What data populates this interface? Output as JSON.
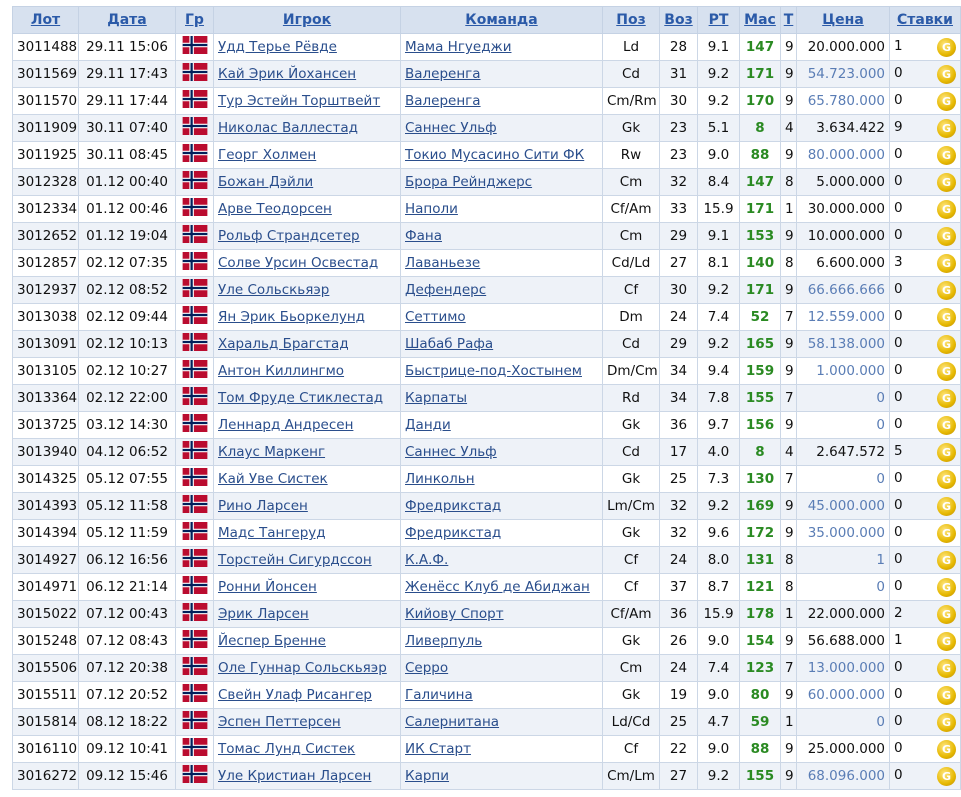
{
  "table": {
    "headers": [
      "Лот",
      "Дата",
      "Гр",
      "Игрок",
      "Команда",
      "Поз",
      "Воз",
      "РТ",
      "Мас",
      "Т",
      "Цена",
      "Ставки"
    ],
    "rows": [
      [
        "3011488",
        "29.11 15:06",
        "Удд Терье Рёвде",
        "Мама Нгуеджи",
        "Ld",
        "28",
        "9.1",
        "147",
        "9",
        "20.000.000",
        "1",
        false
      ],
      [
        "3011569",
        "29.11 17:43",
        "Кай Эрик Йохансен",
        "Валеренга",
        "Cd",
        "31",
        "9.2",
        "171",
        "9",
        "54.723.000",
        "0",
        true
      ],
      [
        "3011570",
        "29.11 17:44",
        "Тур Эстейн Торштвейт",
        "Валеренга",
        "Cm/Rm",
        "30",
        "9.2",
        "170",
        "9",
        "65.780.000",
        "0",
        true
      ],
      [
        "3011909",
        "30.11 07:40",
        "Николас Валлестад",
        "Саннес Ульф",
        "Gk",
        "23",
        "5.1",
        "8",
        "4",
        "3.634.422",
        "9",
        false
      ],
      [
        "3011925",
        "30.11 08:45",
        "Георг Холмен",
        "Токио Мусасино Сити ФК",
        "Rw",
        "23",
        "9.0",
        "88",
        "9",
        "80.000.000",
        "0",
        true
      ],
      [
        "3012328",
        "01.12 00:40",
        "Божан Дэйли",
        "Брора Рейнджерс",
        "Cm",
        "32",
        "8.4",
        "147",
        "8",
        "5.000.000",
        "0",
        false
      ],
      [
        "3012334",
        "01.12 00:46",
        "Арве Теодорсен",
        "Наполи",
        "Cf/Am",
        "33",
        "15.9",
        "171",
        "1",
        "30.000.000",
        "0",
        false
      ],
      [
        "3012652",
        "01.12 19:04",
        "Рольф Страндсетер",
        "Фана",
        "Cm",
        "29",
        "9.1",
        "153",
        "9",
        "10.000.000",
        "0",
        false
      ],
      [
        "3012857",
        "02.12 07:35",
        "Солве Урсин Освестад",
        "Лаваньезе",
        "Cd/Ld",
        "27",
        "8.1",
        "140",
        "8",
        "6.600.000",
        "3",
        false
      ],
      [
        "3012937",
        "02.12 08:52",
        "Уле Сольскьяэр",
        "Дефендерс",
        "Cf",
        "30",
        "9.2",
        "171",
        "9",
        "66.666.666",
        "0",
        true
      ],
      [
        "3013038",
        "02.12 09:44",
        "Ян Эрик Бьоркелунд",
        "Сеттимо",
        "Dm",
        "24",
        "7.4",
        "52",
        "7",
        "12.559.000",
        "0",
        true
      ],
      [
        "3013091",
        "02.12 10:13",
        "Харальд Брагстад",
        "Шабаб Рафа",
        "Cd",
        "29",
        "9.2",
        "165",
        "9",
        "58.138.000",
        "0",
        true
      ],
      [
        "3013105",
        "02.12 10:27",
        "Антон Киллингмо",
        "Быстрице-под-Хостынем",
        "Dm/Cm",
        "34",
        "9.4",
        "159",
        "9",
        "1.000.000",
        "0",
        true
      ],
      [
        "3013364",
        "02.12 22:00",
        "Том Фруде Стиклестад",
        "Карпаты",
        "Rd",
        "34",
        "7.8",
        "155",
        "7",
        "0",
        "0",
        true
      ],
      [
        "3013725",
        "03.12 14:30",
        "Леннард Андресен",
        "Данди",
        "Gk",
        "36",
        "9.7",
        "156",
        "9",
        "0",
        "0",
        true
      ],
      [
        "3013940",
        "04.12 06:52",
        "Клаус Маркенг",
        "Саннес Ульф",
        "Cd",
        "17",
        "4.0",
        "8",
        "4",
        "2.647.572",
        "5",
        false
      ],
      [
        "3014325",
        "05.12 07:55",
        "Кай Уве Систек",
        "Линкольн",
        "Gk",
        "25",
        "7.3",
        "130",
        "7",
        "0",
        "0",
        true
      ],
      [
        "3014393",
        "05.12 11:58",
        "Рино Ларсен",
        "Фредрикстад",
        "Lm/Cm",
        "32",
        "9.2",
        "169",
        "9",
        "45.000.000",
        "0",
        true
      ],
      [
        "3014394",
        "05.12 11:59",
        "Мадс Тангеруд",
        "Фредрикстад",
        "Gk",
        "32",
        "9.6",
        "172",
        "9",
        "35.000.000",
        "0",
        true
      ],
      [
        "3014927",
        "06.12 16:56",
        "Торстейн Сигурдссон",
        "К.А.Ф.",
        "Cf",
        "24",
        "8.0",
        "131",
        "8",
        "1",
        "0",
        true
      ],
      [
        "3014971",
        "06.12 21:14",
        "Ронни Йонсен",
        "Женёсс Клуб де Абиджан",
        "Cf",
        "37",
        "8.7",
        "121",
        "8",
        "0",
        "0",
        true
      ],
      [
        "3015022",
        "07.12 00:43",
        "Эрик Ларсен",
        "Кийову Спорт",
        "Cf/Am",
        "36",
        "15.9",
        "178",
        "1",
        "22.000.000",
        "2",
        false
      ],
      [
        "3015248",
        "07.12 08:43",
        "Йеспер Бренне",
        "Ливерпуль",
        "Gk",
        "26",
        "9.0",
        "154",
        "9",
        "56.688.000",
        "1",
        false
      ],
      [
        "3015506",
        "07.12 20:38",
        "Оле Гуннар Сольскьяэр",
        "Серро",
        "Cm",
        "24",
        "7.4",
        "123",
        "7",
        "13.000.000",
        "0",
        true
      ],
      [
        "3015511",
        "07.12 20:52",
        "Свейн Улаф Рисангер",
        "Галичина",
        "Gk",
        "19",
        "9.0",
        "80",
        "9",
        "60.000.000",
        "0",
        true
      ],
      [
        "3015814",
        "08.12 18:22",
        "Эспен Петтерсен",
        "Салернитана",
        "Ld/Cd",
        "25",
        "4.7",
        "59",
        "1",
        "0",
        "0",
        true
      ],
      [
        "3016110",
        "09.12 10:41",
        "Томас Лунд Систек",
        "ИК Старт",
        "Cf",
        "22",
        "9.0",
        "88",
        "9",
        "25.000.000",
        "0",
        false
      ],
      [
        "3016272",
        "09.12 15:46",
        "Уле Кристиан Ларсен",
        "Карпи",
        "Cm/Lm",
        "27",
        "9.2",
        "155",
        "9",
        "68.096.000",
        "0",
        true
      ]
    ]
  }
}
